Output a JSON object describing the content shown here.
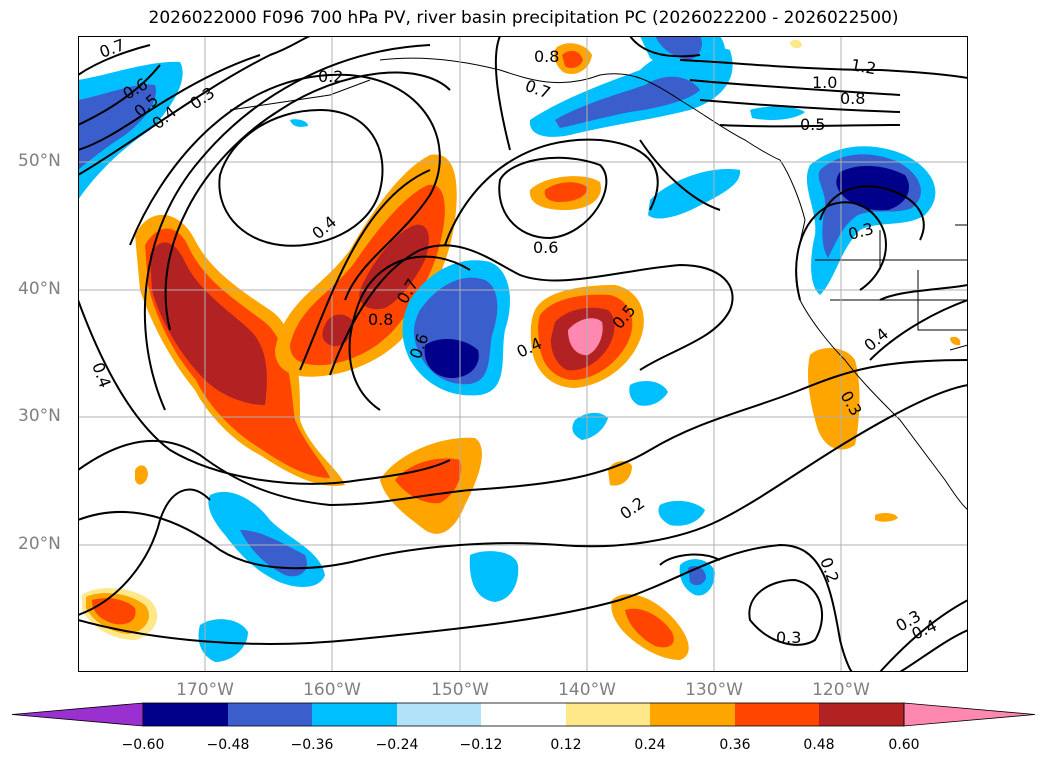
{
  "title": "2026022000 F096 700 hPa PV, river basin precipitation PC (2026022200 - 2026022500)",
  "latitude_labels": [
    "50°N",
    "40°N",
    "30°N",
    "20°N"
  ],
  "longitude_labels": [
    "170°W",
    "160°W",
    "150°W",
    "140°W",
    "130°W",
    "120°W"
  ],
  "contour_labels": [
    "0.7",
    "0.6",
    "0.5",
    "0.4",
    "0.3",
    "0.2",
    "0.8",
    "0.7",
    "1.2",
    "1.0",
    "0.8",
    "0.5",
    "0.4",
    "0.6",
    "0.7",
    "0.8",
    "0.6",
    "0.4",
    "0.5",
    "0.3",
    "0.4",
    "0.3",
    "0.4",
    "0.2",
    "0.2",
    "0.3",
    "0.3",
    "0.4"
  ],
  "colorbar": {
    "ticks": [
      "−0.60",
      "−0.48",
      "−0.36",
      "−0.24",
      "−0.12",
      "0.12",
      "0.24",
      "0.36",
      "0.48",
      "0.60"
    ],
    "colors": [
      "#9b30d0",
      "#00008b",
      "#3a5fcd",
      "#00bfff",
      "#b2e2fa",
      "#ffffff",
      "#ffe88a",
      "#ffa500",
      "#ff4500",
      "#b22222",
      "#ff88b0",
      "#ff88b0"
    ]
  }
}
